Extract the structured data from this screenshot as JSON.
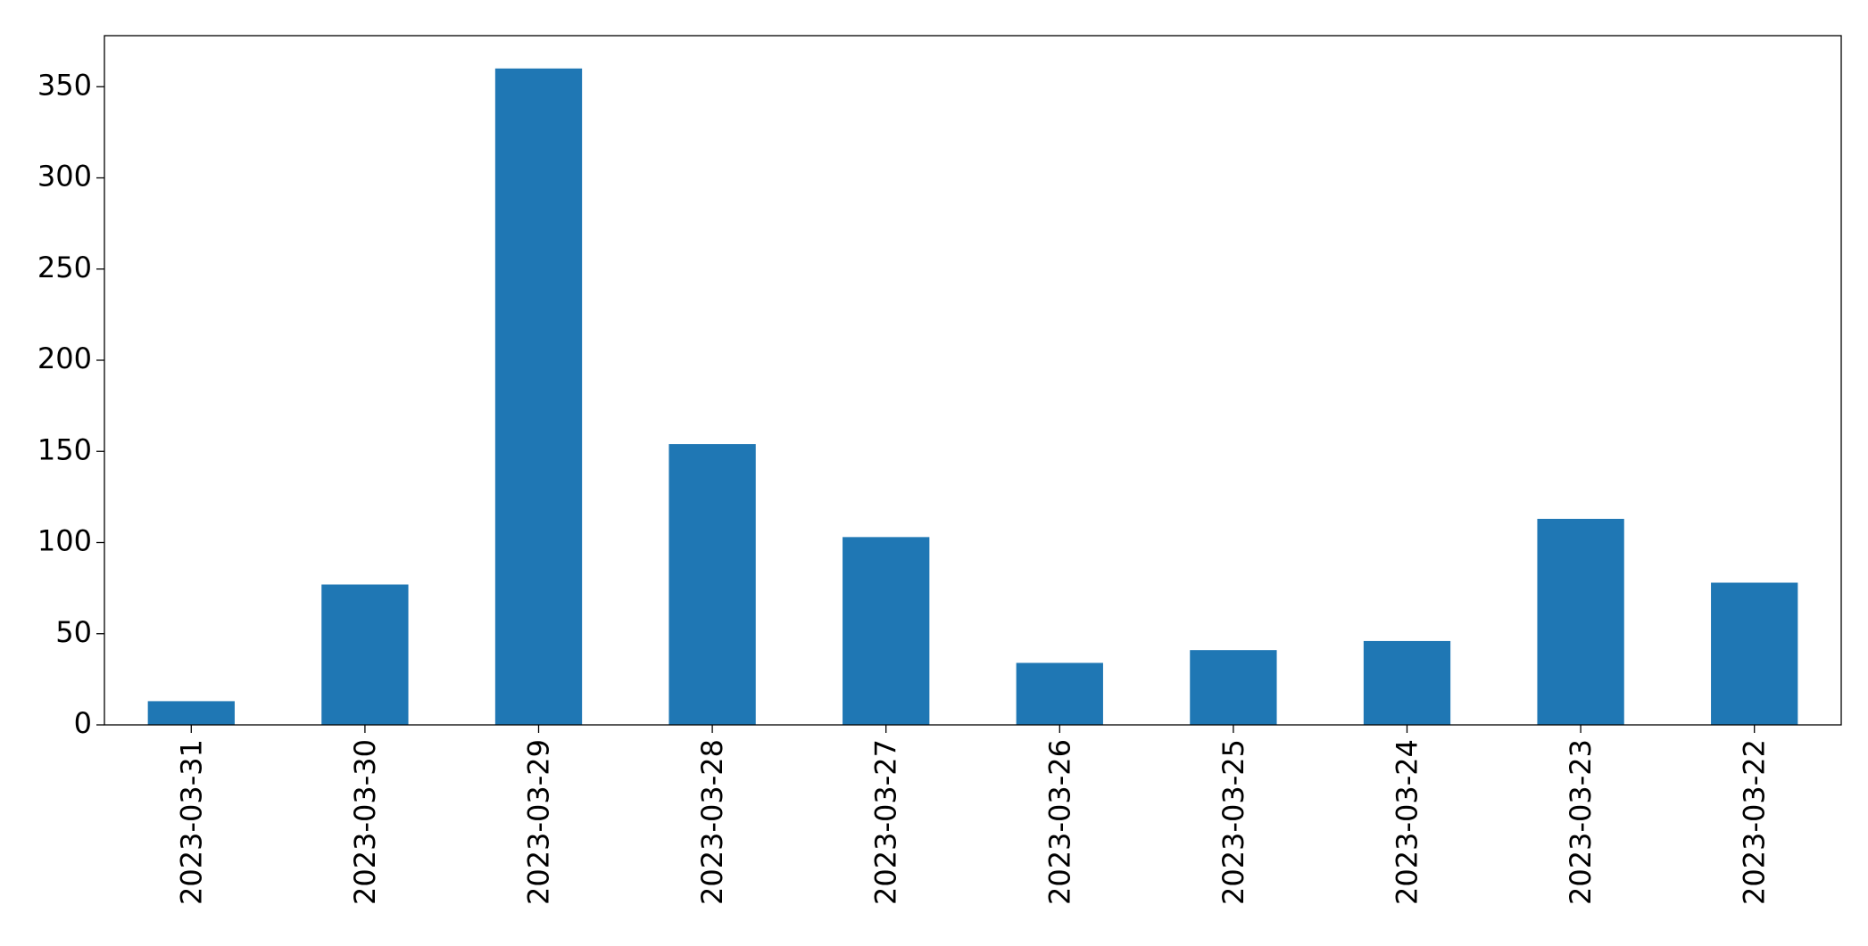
{
  "chart_data": {
    "type": "bar",
    "categories": [
      "2023-03-31",
      "2023-03-30",
      "2023-03-29",
      "2023-03-28",
      "2023-03-27",
      "2023-03-26",
      "2023-03-25",
      "2023-03-24",
      "2023-03-23",
      "2023-03-22"
    ],
    "values": [
      13,
      77,
      360,
      154,
      103,
      34,
      41,
      46,
      113,
      78
    ],
    "color": "#1f77b4",
    "ylim": [
      0,
      378
    ],
    "yticks": [
      0,
      50,
      100,
      150,
      200,
      250,
      300,
      350
    ],
    "grid": false
  }
}
